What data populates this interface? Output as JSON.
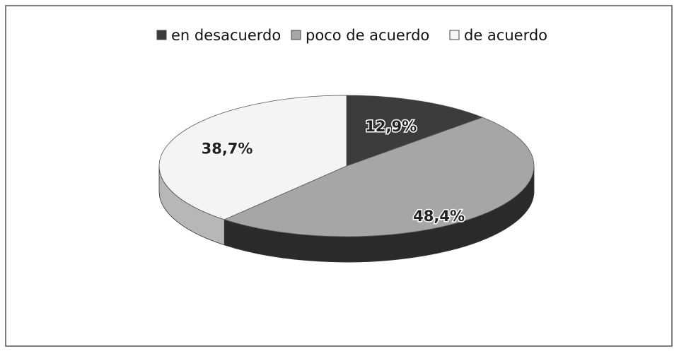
{
  "chart_data": {
    "type": "pie",
    "categories": [
      "en desacuerdo",
      "poco de acuerdo",
      "de acuerdo"
    ],
    "values": [
      12.9,
      48.4,
      38.7
    ],
    "value_labels": [
      "12,9%",
      "48,4%",
      "38,7%"
    ],
    "colors": [
      "#3c3c3c",
      "#a6a6a6",
      "#f4f4f4"
    ],
    "legend": "top"
  }
}
